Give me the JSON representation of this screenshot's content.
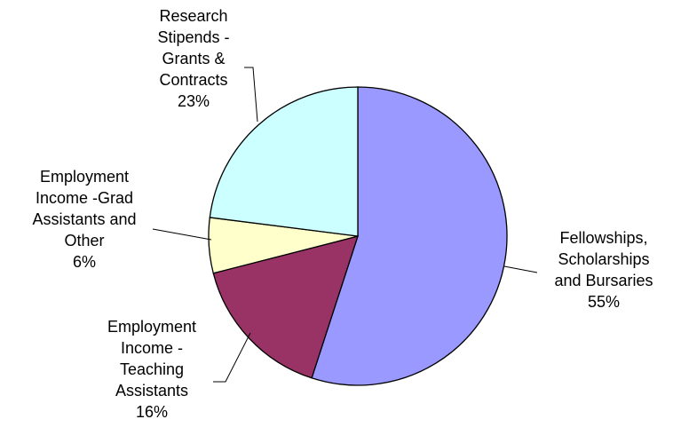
{
  "chart_data": {
    "type": "pie",
    "start_angle_deg": 0,
    "direction": "clockwise",
    "slices": [
      {
        "label_lines": [
          "Fellowships,",
          "Scholarships",
          "and Bursaries"
        ],
        "percent_label": "55%",
        "value": 55,
        "color": "#9999ff"
      },
      {
        "label_lines": [
          "Employment",
          "Income -",
          "Teaching",
          "Assistants"
        ],
        "percent_label": "16%",
        "value": 16,
        "color": "#993366"
      },
      {
        "label_lines": [
          "Employment",
          "Income -Grad",
          "Assistants and",
          "Other"
        ],
        "percent_label": "6%",
        "value": 6,
        "color": "#ffffcc"
      },
      {
        "label_lines": [
          "Research",
          "Stipends -",
          "Grants &",
          "Contracts"
        ],
        "percent_label": "23%",
        "value": 23,
        "color": "#ccffff"
      }
    ]
  }
}
